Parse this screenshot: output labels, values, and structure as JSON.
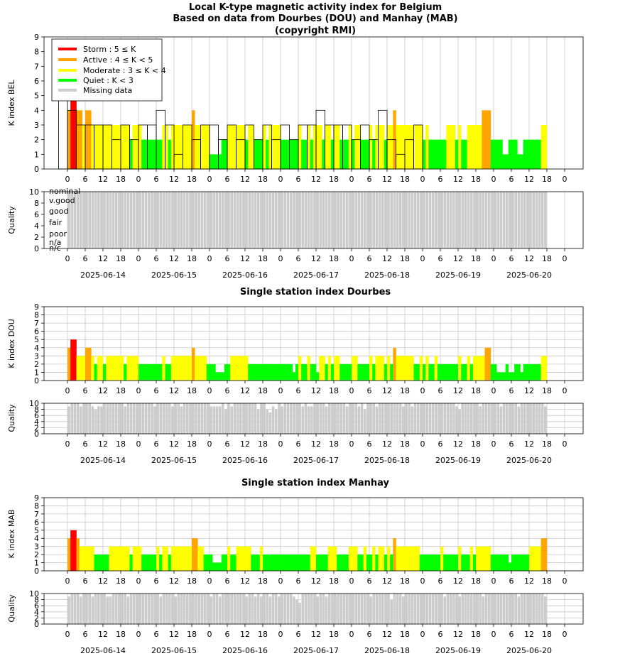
{
  "page": {
    "title": "Local K-type magnetic activity index for Belgium",
    "subtitle": "Based on data from Dourbes (DOU) and Manhay (MAB)",
    "copyright": "(copyright RMI)"
  },
  "colors": {
    "storm": "#ff0000",
    "active": "#ffa500",
    "moderate": "#ffff00",
    "quiet": "#00ff00",
    "missing": "#cccccc",
    "grid": "#c8c8c8"
  },
  "legend": [
    {
      "label": "Storm : 5 ≤ K",
      "color": "#ff0000"
    },
    {
      "label": "Active : 4 ≤ K < 5",
      "color": "#ffa500"
    },
    {
      "label": "Moderate : 3 ≤ K < 4",
      "color": "#ffff00"
    },
    {
      "label": "Quiet : K < 3",
      "color": "#00ff00"
    },
    {
      "label": "Missing data",
      "color": "#cccccc"
    }
  ],
  "quality_labels": [
    "nominal",
    "v.good",
    "good",
    "fair",
    "poor",
    "n/a",
    "n/c"
  ],
  "x_tick_labels": [
    "0",
    "6",
    "12",
    "18",
    "0",
    "6",
    "12",
    "18",
    "0",
    "6",
    "12",
    "18",
    "0",
    "6",
    "12",
    "18",
    "0",
    "6",
    "12",
    "18",
    "0",
    "6",
    "12",
    "18",
    "0",
    "6",
    "12",
    "18",
    "0"
  ],
  "date_labels": [
    "2025-06-14",
    "2025-06-15",
    "2025-06-16",
    "2025-06-17",
    "2025-06-18",
    "2025-06-19",
    "2025-06-20"
  ],
  "panels": {
    "bel": {
      "ylabel": "K index BEL",
      "quality_label": "Quality"
    },
    "dou": {
      "title": "Single station index Dourbes",
      "ylabel": "K index DOU",
      "quality_label": "Quality"
    },
    "mab": {
      "title": "Single station index Manhay",
      "ylabel": "K index MAB",
      "quality_label": "Quality"
    }
  },
  "chart_data": [
    {
      "type": "bar",
      "name": "bel_k",
      "x_unit": "hours",
      "x_range": [
        "2025-06-14T00:00",
        "2025-06-21T00:00"
      ],
      "ylim": [
        0,
        9
      ],
      "three_hour_values": [
        5,
        4,
        3,
        3,
        3,
        3,
        2,
        3,
        2,
        3,
        3,
        4,
        3,
        1,
        3,
        2,
        3,
        3,
        2,
        3,
        2,
        3,
        2,
        3,
        2,
        3,
        2,
        3,
        3,
        4,
        3,
        3,
        3,
        2,
        3,
        2,
        4,
        2,
        1,
        2,
        3
      ],
      "hourly_values": [
        4,
        5,
        5,
        4,
        4,
        3,
        4,
        4,
        3,
        3,
        3,
        3,
        3,
        3,
        3,
        3,
        3,
        3,
        3,
        3,
        3,
        2,
        3,
        3,
        3,
        2,
        2,
        2,
        2,
        2,
        2,
        2,
        3,
        3,
        2,
        3,
        3,
        3,
        3,
        3,
        3,
        3,
        4,
        3,
        3,
        3,
        3,
        3,
        1,
        1,
        1,
        1,
        2,
        2,
        3,
        3,
        3,
        3,
        3,
        3,
        2,
        3,
        3,
        2,
        2,
        2,
        3,
        2,
        3,
        3,
        3,
        3,
        2,
        2,
        2,
        2,
        2,
        2,
        3,
        2,
        2,
        3,
        2,
        3,
        3,
        3,
        2,
        3,
        3,
        2,
        3,
        3,
        2,
        2,
        2,
        3,
        2,
        3,
        3,
        2,
        2,
        2,
        3,
        2,
        3,
        3,
        3,
        2,
        3,
        3,
        4,
        3,
        3,
        3,
        3,
        3,
        3,
        3,
        3,
        3,
        2,
        3,
        2,
        2,
        2,
        2,
        2,
        2,
        3,
        3,
        3,
        2,
        3,
        2,
        2,
        3,
        3,
        3,
        3,
        3,
        4,
        4,
        4,
        2,
        2,
        2,
        2,
        1,
        1,
        2,
        2,
        2,
        1,
        1,
        2,
        2,
        2,
        2,
        2,
        2,
        3,
        3
      ]
    },
    {
      "type": "bar",
      "name": "bel_quality",
      "ylim": [
        0,
        10
      ],
      "values_note": "",
      "hourly_values": [
        10,
        10,
        10,
        10,
        10,
        10,
        10,
        10,
        10,
        10,
        10,
        10,
        10,
        10,
        10,
        10,
        10,
        10,
        10,
        10,
        10,
        10,
        10,
        10,
        10,
        10,
        10,
        10,
        10,
        10,
        10,
        10,
        10,
        10,
        10,
        10,
        10,
        10,
        10,
        10,
        10,
        10,
        10,
        10,
        10,
        10,
        10,
        10,
        10,
        10,
        10,
        10,
        10,
        10,
        10,
        10,
        10,
        10,
        10,
        10,
        10,
        10,
        10,
        10,
        10,
        10,
        10,
        10,
        10,
        10,
        10,
        10,
        10,
        10,
        10,
        10,
        10,
        10,
        10,
        10,
        10,
        10,
        10,
        10,
        10,
        10,
        10,
        10,
        10,
        10,
        10,
        10,
        10,
        10,
        10,
        10,
        10,
        10,
        10,
        10,
        10,
        10,
        10,
        10,
        10,
        10,
        10,
        10,
        10,
        10,
        10,
        10,
        10,
        10,
        10,
        10,
        10,
        10,
        10,
        10,
        10,
        10,
        10,
        10,
        10,
        10,
        10,
        10,
        10,
        10,
        10,
        10,
        10,
        10,
        10,
        10,
        10,
        10,
        10,
        10,
        10,
        10,
        10,
        10,
        10,
        10,
        10,
        10,
        10,
        10,
        10,
        10,
        10,
        10,
        10,
        10,
        10,
        10,
        10,
        10,
        10,
        10
      ]
    },
    {
      "type": "bar",
      "name": "dou_k",
      "ylim": [
        0,
        9
      ],
      "hourly_values": [
        4,
        5,
        5,
        3,
        3,
        3,
        4,
        4,
        3,
        2,
        3,
        3,
        2,
        3,
        3,
        3,
        3,
        3,
        3,
        2,
        3,
        3,
        3,
        3,
        2,
        2,
        2,
        2,
        2,
        2,
        2,
        2,
        3,
        2,
        2,
        3,
        3,
        3,
        3,
        3,
        3,
        3,
        4,
        3,
        3,
        3,
        3,
        2,
        2,
        2,
        1,
        1,
        1,
        2,
        2,
        3,
        3,
        3,
        3,
        3,
        3,
        2,
        2,
        2,
        2,
        2,
        2,
        2,
        2,
        2,
        2,
        2,
        2,
        2,
        2,
        2,
        1,
        2,
        3,
        2,
        2,
        3,
        2,
        2,
        1,
        3,
        3,
        2,
        3,
        2,
        3,
        3,
        2,
        2,
        2,
        2,
        3,
        3,
        2,
        2,
        2,
        2,
        3,
        2,
        3,
        3,
        3,
        2,
        3,
        2,
        4,
        3,
        3,
        3,
        3,
        3,
        3,
        2,
        2,
        3,
        2,
        3,
        2,
        2,
        3,
        2,
        2,
        2,
        2,
        2,
        2,
        2,
        3,
        2,
        2,
        3,
        2,
        3,
        3,
        3,
        3,
        4,
        4,
        2,
        2,
        1,
        1,
        1,
        2,
        1,
        1,
        2,
        2,
        1,
        2,
        2,
        2,
        2,
        2,
        2,
        3,
        3
      ]
    },
    {
      "type": "bar",
      "name": "dou_quality",
      "ylim": [
        0,
        10
      ],
      "hourly_values": [
        9,
        10,
        10,
        10,
        9,
        10,
        10,
        10,
        9,
        8,
        9,
        9,
        10,
        10,
        10,
        10,
        10,
        10,
        10,
        9,
        10,
        10,
        10,
        10,
        10,
        10,
        10,
        10,
        10,
        9,
        10,
        10,
        10,
        10,
        10,
        9,
        10,
        10,
        9,
        10,
        10,
        10,
        10,
        10,
        10,
        10,
        10,
        10,
        9,
        9,
        9,
        9,
        10,
        8,
        10,
        9,
        10,
        10,
        10,
        10,
        10,
        10,
        10,
        10,
        8,
        10,
        10,
        8,
        7,
        9,
        8,
        10,
        9,
        10,
        10,
        10,
        10,
        10,
        10,
        9,
        10,
        9,
        9,
        10,
        10,
        10,
        10,
        9,
        10,
        10,
        10,
        10,
        10,
        10,
        9,
        10,
        10,
        10,
        9,
        10,
        8,
        10,
        10,
        10,
        9,
        10,
        10,
        10,
        10,
        10,
        10,
        10,
        10,
        9,
        10,
        10,
        9,
        10,
        10,
        10,
        10,
        10,
        10,
        10,
        10,
        10,
        10,
        10,
        10,
        10,
        10,
        9,
        8,
        10,
        10,
        10,
        10,
        10,
        10,
        9,
        10,
        10,
        10,
        10,
        10,
        10,
        9,
        10,
        10,
        10,
        10,
        10,
        9,
        10,
        10,
        10,
        10,
        10,
        10,
        10,
        10,
        9
      ]
    },
    {
      "type": "bar",
      "name": "mab_k",
      "ylim": [
        0,
        9
      ],
      "hourly_values": [
        4,
        5,
        5,
        4,
        3,
        3,
        3,
        3,
        3,
        2,
        2,
        2,
        2,
        2,
        3,
        3,
        3,
        3,
        3,
        3,
        3,
        2,
        3,
        3,
        3,
        2,
        2,
        2,
        2,
        2,
        3,
        2,
        3,
        3,
        2,
        3,
        3,
        3,
        3,
        3,
        3,
        3,
        4,
        4,
        3,
        3,
        2,
        2,
        2,
        1,
        1,
        1,
        2,
        2,
        3,
        2,
        2,
        3,
        3,
        3,
        3,
        3,
        2,
        2,
        2,
        3,
        2,
        2,
        2,
        2,
        2,
        2,
        2,
        2,
        2,
        2,
        2,
        2,
        2,
        2,
        2,
        2,
        3,
        3,
        2,
        2,
        2,
        2,
        3,
        3,
        3,
        2,
        2,
        2,
        2,
        3,
        3,
        3,
        2,
        2,
        3,
        2,
        2,
        3,
        2,
        3,
        3,
        2,
        3,
        2,
        4,
        3,
        3,
        3,
        3,
        3,
        3,
        3,
        3,
        2,
        2,
        2,
        2,
        2,
        2,
        2,
        3,
        2,
        2,
        2,
        2,
        2,
        3,
        2,
        2,
        2,
        3,
        2,
        3,
        3,
        3,
        3,
        3,
        2,
        2,
        2,
        2,
        2,
        2,
        1,
        2,
        2,
        2,
        2,
        2,
        2,
        3,
        3,
        3,
        3,
        4,
        4
      ]
    },
    {
      "type": "bar",
      "name": "mab_quality",
      "ylim": [
        0,
        10
      ],
      "hourly_values": [
        9,
        10,
        10,
        10,
        9,
        10,
        10,
        10,
        9,
        10,
        10,
        10,
        10,
        9,
        9,
        10,
        10,
        10,
        10,
        10,
        9,
        10,
        10,
        10,
        10,
        10,
        10,
        10,
        10,
        10,
        10,
        9,
        10,
        10,
        10,
        10,
        9,
        10,
        10,
        10,
        10,
        10,
        10,
        10,
        10,
        10,
        10,
        10,
        9,
        10,
        10,
        9,
        10,
        10,
        10,
        10,
        10,
        10,
        10,
        10,
        9,
        10,
        10,
        9,
        10,
        9,
        10,
        10,
        9,
        10,
        10,
        9,
        10,
        10,
        10,
        10,
        9,
        8,
        7,
        10,
        10,
        10,
        10,
        10,
        9,
        10,
        10,
        9,
        10,
        10,
        10,
        10,
        10,
        10,
        10,
        10,
        10,
        10,
        10,
        10,
        10,
        10,
        9,
        10,
        10,
        10,
        10,
        10,
        10,
        8,
        10,
        10,
        10,
        9,
        10,
        10,
        10,
        10,
        10,
        10,
        10,
        10,
        10,
        10,
        10,
        10,
        10,
        9,
        10,
        10,
        10,
        10,
        9,
        10,
        10,
        10,
        10,
        10,
        10,
        10,
        9,
        10,
        10,
        10,
        10,
        10,
        10,
        10,
        10,
        10,
        10,
        10,
        9,
        10,
        10,
        10,
        10,
        10,
        10,
        10,
        10,
        9
      ]
    }
  ]
}
